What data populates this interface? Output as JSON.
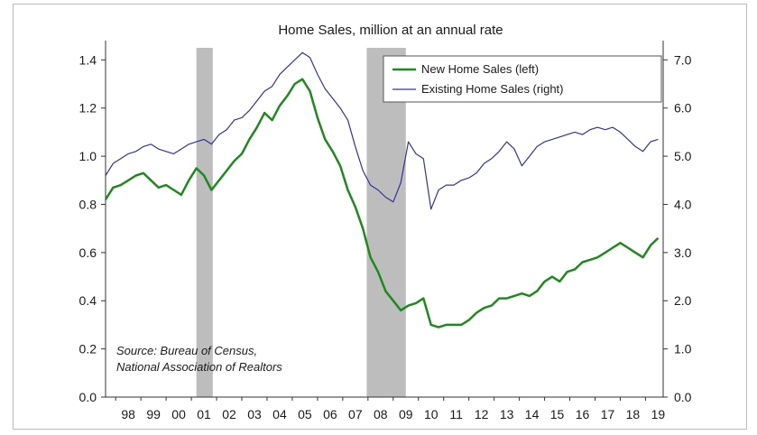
{
  "chart_data": {
    "type": "line",
    "title": "Home Sales, million at an annual rate",
    "source_lines": [
      "Source: Bureau of Census,",
      "National Association of Realtors"
    ],
    "x_tick_labels": [
      "98",
      "99",
      "00",
      "01",
      "02",
      "03",
      "04",
      "05",
      "06",
      "07",
      "08",
      "09",
      "10",
      "11",
      "12",
      "13",
      "14",
      "15",
      "16",
      "17",
      "18",
      "19"
    ],
    "xlim": [
      1997.6,
      2019.7
    ],
    "y_left": {
      "ylim": [
        0,
        1.45
      ],
      "ticks": [
        "0.0",
        "0.2",
        "0.4",
        "0.6",
        "0.8",
        "1.0",
        "1.2",
        "1.4"
      ]
    },
    "y_right": {
      "ylim": [
        0,
        7.25
      ],
      "ticks": [
        "0.0",
        "1.0",
        "2.0",
        "3.0",
        "4.0",
        "5.0",
        "6.0",
        "7.0"
      ]
    },
    "recessions": [
      {
        "start": 2001.2,
        "end": 2001.85
      },
      {
        "start": 2007.95,
        "end": 2009.5
      }
    ],
    "legend_position": "top-right",
    "series": [
      {
        "name": "New Home Sales (left)",
        "axis": "left",
        "color": "#1e8a1e",
        "x": [
          1997.6,
          1997.9,
          1998.2,
          1998.5,
          1998.8,
          1999.1,
          1999.4,
          1999.7,
          2000.0,
          2000.3,
          2000.6,
          2000.9,
          2001.2,
          2001.5,
          2001.8,
          2002.1,
          2002.4,
          2002.7,
          2003.0,
          2003.3,
          2003.6,
          2003.9,
          2004.2,
          2004.5,
          2004.8,
          2005.1,
          2005.4,
          2005.7,
          2006.0,
          2006.3,
          2006.6,
          2006.9,
          2007.2,
          2007.5,
          2007.8,
          2008.1,
          2008.4,
          2008.7,
          2009.0,
          2009.3,
          2009.6,
          2009.9,
          2010.2,
          2010.5,
          2010.8,
          2011.1,
          2011.4,
          2011.7,
          2012.0,
          2012.3,
          2012.6,
          2012.9,
          2013.2,
          2013.5,
          2013.8,
          2014.1,
          2014.4,
          2014.7,
          2015.0,
          2015.3,
          2015.6,
          2015.9,
          2016.2,
          2016.5,
          2016.8,
          2017.1,
          2017.4,
          2017.7,
          2018.0,
          2018.3,
          2018.6,
          2018.9,
          2019.2,
          2019.5
        ],
        "y": [
          0.82,
          0.87,
          0.88,
          0.9,
          0.92,
          0.93,
          0.9,
          0.87,
          0.88,
          0.86,
          0.84,
          0.9,
          0.95,
          0.92,
          0.86,
          0.9,
          0.94,
          0.98,
          1.01,
          1.07,
          1.12,
          1.18,
          1.15,
          1.21,
          1.25,
          1.3,
          1.32,
          1.27,
          1.16,
          1.07,
          1.02,
          0.96,
          0.86,
          0.79,
          0.7,
          0.58,
          0.52,
          0.44,
          0.4,
          0.36,
          0.38,
          0.39,
          0.41,
          0.3,
          0.29,
          0.3,
          0.3,
          0.3,
          0.32,
          0.35,
          0.37,
          0.38,
          0.41,
          0.41,
          0.42,
          0.43,
          0.42,
          0.44,
          0.48,
          0.5,
          0.48,
          0.52,
          0.53,
          0.56,
          0.57,
          0.58,
          0.6,
          0.62,
          0.64,
          0.62,
          0.6,
          0.58,
          0.63,
          0.66
        ]
      },
      {
        "name": "Existing Home Sales (right)",
        "axis": "right",
        "color": "#33339a",
        "x": [
          1997.6,
          1997.9,
          1998.2,
          1998.5,
          1998.8,
          1999.1,
          1999.4,
          1999.7,
          2000.0,
          2000.3,
          2000.6,
          2000.9,
          2001.2,
          2001.5,
          2001.8,
          2002.1,
          2002.4,
          2002.7,
          2003.0,
          2003.3,
          2003.6,
          2003.9,
          2004.2,
          2004.5,
          2004.8,
          2005.1,
          2005.4,
          2005.7,
          2006.0,
          2006.3,
          2006.6,
          2006.9,
          2007.2,
          2007.5,
          2007.8,
          2008.1,
          2008.4,
          2008.7,
          2009.0,
          2009.3,
          2009.6,
          2009.9,
          2010.2,
          2010.5,
          2010.8,
          2011.1,
          2011.4,
          2011.7,
          2012.0,
          2012.3,
          2012.6,
          2012.9,
          2013.2,
          2013.5,
          2013.8,
          2014.1,
          2014.4,
          2014.7,
          2015.0,
          2015.3,
          2015.6,
          2015.9,
          2016.2,
          2016.5,
          2016.8,
          2017.1,
          2017.4,
          2017.7,
          2018.0,
          2018.3,
          2018.6,
          2018.9,
          2019.2,
          2019.5
        ],
        "y": [
          4.6,
          4.85,
          4.95,
          5.05,
          5.1,
          5.2,
          5.25,
          5.15,
          5.1,
          5.05,
          5.15,
          5.25,
          5.3,
          5.35,
          5.25,
          5.45,
          5.55,
          5.75,
          5.8,
          5.95,
          6.15,
          6.35,
          6.45,
          6.7,
          6.85,
          7.0,
          7.15,
          7.05,
          6.7,
          6.4,
          6.2,
          6.0,
          5.75,
          5.2,
          4.7,
          4.4,
          4.3,
          4.15,
          4.05,
          4.45,
          5.3,
          5.05,
          4.95,
          3.9,
          4.3,
          4.4,
          4.4,
          4.5,
          4.55,
          4.65,
          4.85,
          4.95,
          5.1,
          5.3,
          5.15,
          4.8,
          5.0,
          5.2,
          5.3,
          5.35,
          5.4,
          5.45,
          5.5,
          5.45,
          5.55,
          5.6,
          5.55,
          5.6,
          5.5,
          5.35,
          5.2,
          5.1,
          5.3,
          5.35
        ]
      }
    ]
  }
}
